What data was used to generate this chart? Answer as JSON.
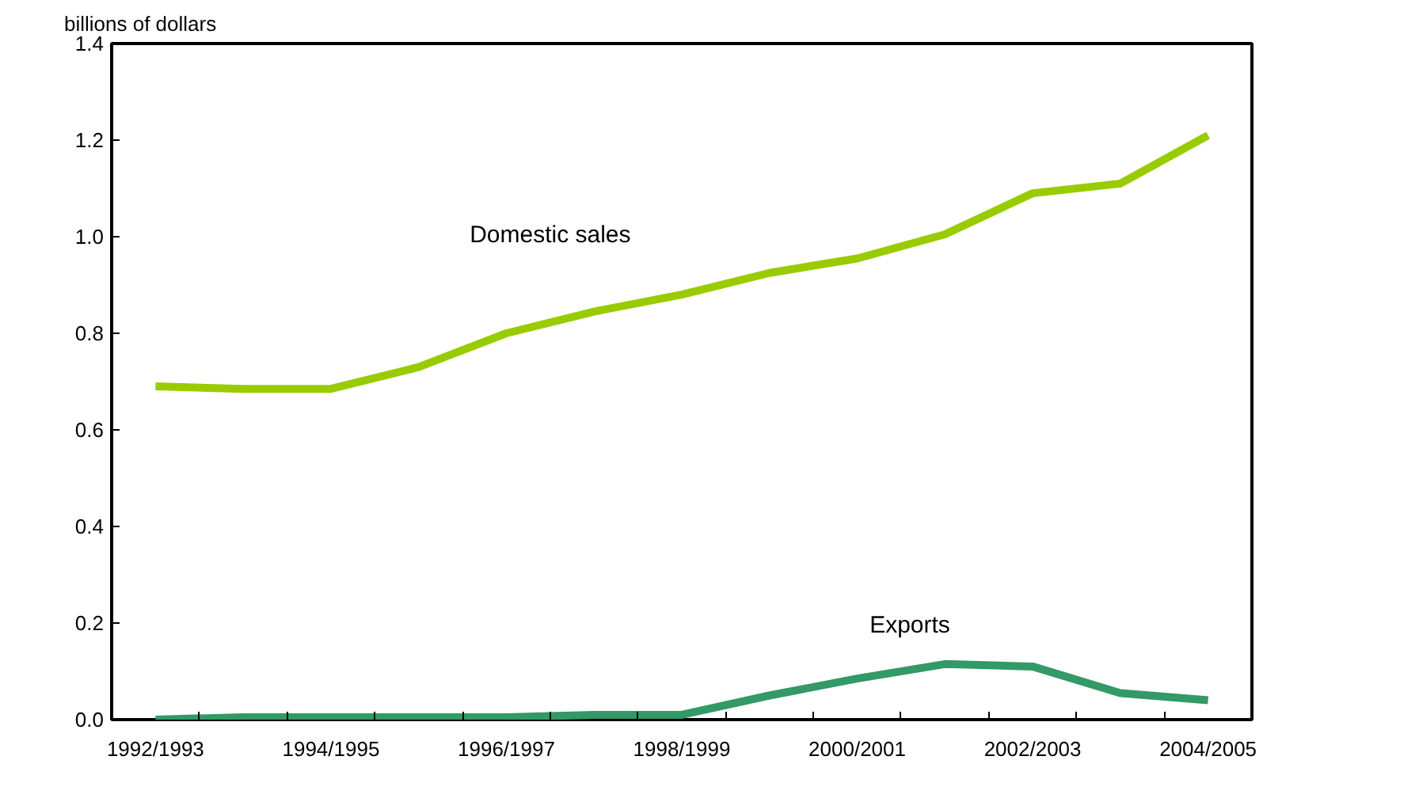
{
  "chart_data": {
    "type": "line",
    "ylabel": "billions of dollars",
    "categories": [
      "1992/1993",
      null,
      "1994/1995",
      null,
      "1996/1997",
      null,
      "1998/1999",
      null,
      "2000/2001",
      null,
      "2002/2003",
      null,
      "2004/2005"
    ],
    "series": [
      {
        "name": "Domestic sales",
        "color": "#99cc00",
        "values": [
          0.69,
          0.685,
          0.685,
          0.73,
          0.8,
          0.845,
          0.88,
          0.925,
          0.955,
          1.005,
          1.09,
          1.11,
          1.21
        ]
      },
      {
        "name": "Exports",
        "color": "#339966",
        "values": [
          0.0,
          0.005,
          0.005,
          0.005,
          0.005,
          0.01,
          0.01,
          0.05,
          0.085,
          0.115,
          0.11,
          0.055,
          0.04
        ]
      }
    ],
    "ylim": [
      0,
      1.4
    ],
    "yticks": [
      {
        "value": 0,
        "label": "0.0"
      },
      {
        "value": 0.2,
        "label": "0.2"
      },
      {
        "value": 0.4,
        "label": "0.4"
      },
      {
        "value": 0.6,
        "label": "0.6"
      },
      {
        "value": 0.8,
        "label": "0.8"
      },
      {
        "value": 1.0,
        "label": "1.0"
      },
      {
        "value": 1.2,
        "label": "1.2"
      },
      {
        "value": 1.4,
        "label": "1.4"
      }
    ],
    "grid": false,
    "marker": "none",
    "line_style": "solid"
  }
}
